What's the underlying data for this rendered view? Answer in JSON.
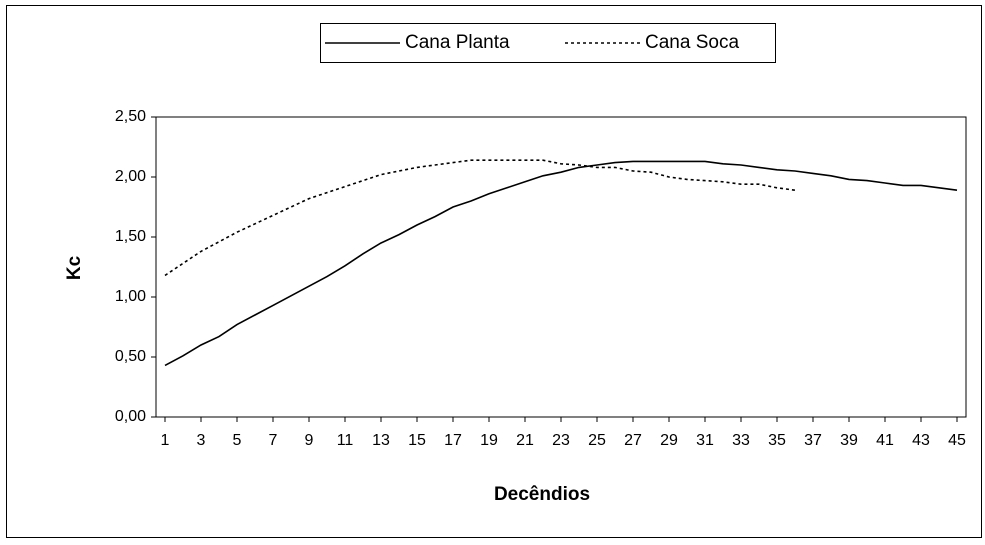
{
  "chart_data": {
    "type": "line",
    "x_label": "Decêndios",
    "y_label": "Kc",
    "x": [
      1,
      2,
      3,
      4,
      5,
      6,
      7,
      8,
      9,
      10,
      11,
      12,
      13,
      14,
      15,
      16,
      17,
      18,
      19,
      20,
      21,
      22,
      23,
      24,
      25,
      26,
      27,
      28,
      29,
      30,
      31,
      32,
      33,
      34,
      35,
      36,
      37,
      38,
      39,
      40,
      41,
      42,
      43,
      44,
      45
    ],
    "xlim": [
      0.5,
      45.5
    ],
    "xticks": [
      1,
      3,
      5,
      7,
      9,
      11,
      13,
      15,
      17,
      19,
      21,
      23,
      25,
      27,
      29,
      31,
      33,
      35,
      37,
      39,
      41,
      43,
      45
    ],
    "ylim": [
      0,
      2.5
    ],
    "yticks": [
      {
        "value": 0,
        "label": "0,00"
      },
      {
        "value": 0.5,
        "label": "0,50"
      },
      {
        "value": 1,
        "label": "1,00"
      },
      {
        "value": 1.5,
        "label": "1,50"
      },
      {
        "value": 2,
        "label": "2,00"
      },
      {
        "value": 2.5,
        "label": "2,50"
      }
    ],
    "grid": false,
    "legend": "top",
    "series": [
      {
        "name": "Cana Planta",
        "color": "#000000",
        "dash": "solid",
        "values": [
          0.43,
          0.51,
          0.6,
          0.67,
          0.77,
          0.85,
          0.93,
          1.01,
          1.09,
          1.17,
          1.26,
          1.36,
          1.45,
          1.52,
          1.6,
          1.67,
          1.75,
          1.8,
          1.86,
          1.91,
          1.96,
          2.01,
          2.04,
          2.08,
          2.1,
          2.12,
          2.13,
          2.13,
          2.13,
          2.13,
          2.13,
          2.11,
          2.1,
          2.08,
          2.06,
          2.05,
          2.03,
          2.01,
          1.98,
          1.97,
          1.95,
          1.93,
          1.93,
          1.91,
          1.89
        ]
      },
      {
        "name": "Cana Soca",
        "color": "#000000",
        "dash": "dotted",
        "values": [
          1.18,
          1.28,
          1.38,
          1.46,
          1.54,
          1.61,
          1.68,
          1.75,
          1.82,
          1.87,
          1.92,
          1.97,
          2.02,
          2.05,
          2.08,
          2.1,
          2.12,
          2.14,
          2.14,
          2.14,
          2.14,
          2.14,
          2.11,
          2.1,
          2.08,
          2.08,
          2.05,
          2.04,
          2.0,
          1.98,
          1.97,
          1.96,
          1.94,
          1.94,
          1.91,
          1.89,
          null,
          null,
          null,
          null,
          null,
          null,
          null,
          null,
          null
        ]
      }
    ]
  }
}
